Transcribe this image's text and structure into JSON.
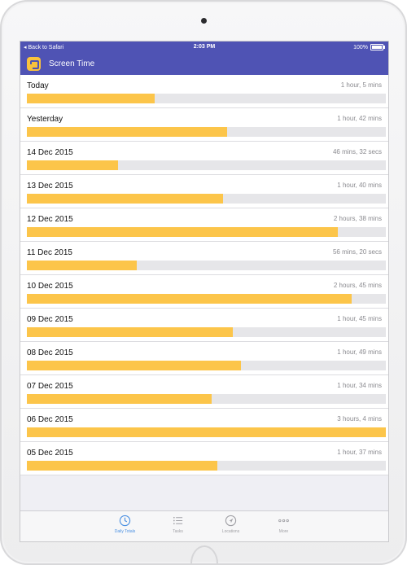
{
  "status_bar": {
    "back_label": "Back to Safari",
    "time": "2:03 PM",
    "battery": "100%"
  },
  "nav": {
    "title": "Screen Time",
    "icon": "screen-time-app-icon"
  },
  "daily_totals": [
    {
      "date": "Today",
      "duration": "1 hour, 5 mins",
      "fraction": 0.355
    },
    {
      "date": "Yesterday",
      "duration": "1 hour, 42 mins",
      "fraction": 0.557
    },
    {
      "date": "14 Dec 2015",
      "duration": "46 mins, 32 secs",
      "fraction": 0.253
    },
    {
      "date": "13 Dec 2015",
      "duration": "1 hour, 40 mins",
      "fraction": 0.547
    },
    {
      "date": "12 Dec 2015",
      "duration": "2 hours, 38 mins",
      "fraction": 0.866
    },
    {
      "date": "11 Dec 2015",
      "duration": "56 mins, 20 secs",
      "fraction": 0.306
    },
    {
      "date": "10 Dec 2015",
      "duration": "2 hours, 45 mins",
      "fraction": 0.904
    },
    {
      "date": "09 Dec 2015",
      "duration": "1 hour, 45 mins",
      "fraction": 0.574
    },
    {
      "date": "08 Dec 2015",
      "duration": "1 hour, 49 mins",
      "fraction": 0.596
    },
    {
      "date": "07 Dec 2015",
      "duration": "1 hour, 34 mins",
      "fraction": 0.514
    },
    {
      "date": "06 Dec 2015",
      "duration": "3 hours, 4 mins",
      "fraction": 1.0
    },
    {
      "date": "05 Dec 2015",
      "duration": "1 hour, 37 mins",
      "fraction": 0.53
    }
  ],
  "tabs": [
    {
      "label": "Daily Totals",
      "icon": "clock-icon",
      "active": true
    },
    {
      "label": "Tasks",
      "icon": "list-icon",
      "active": false
    },
    {
      "label": "Locations",
      "icon": "location-arrow-icon",
      "active": false
    },
    {
      "label": "More",
      "icon": "more-dots-icon",
      "active": false
    }
  ],
  "colors": {
    "accent": "#4f53b4",
    "bar_fill": "#fcc54a",
    "bar_track": "#e6e6e9",
    "active_tab": "#4a90e2"
  }
}
